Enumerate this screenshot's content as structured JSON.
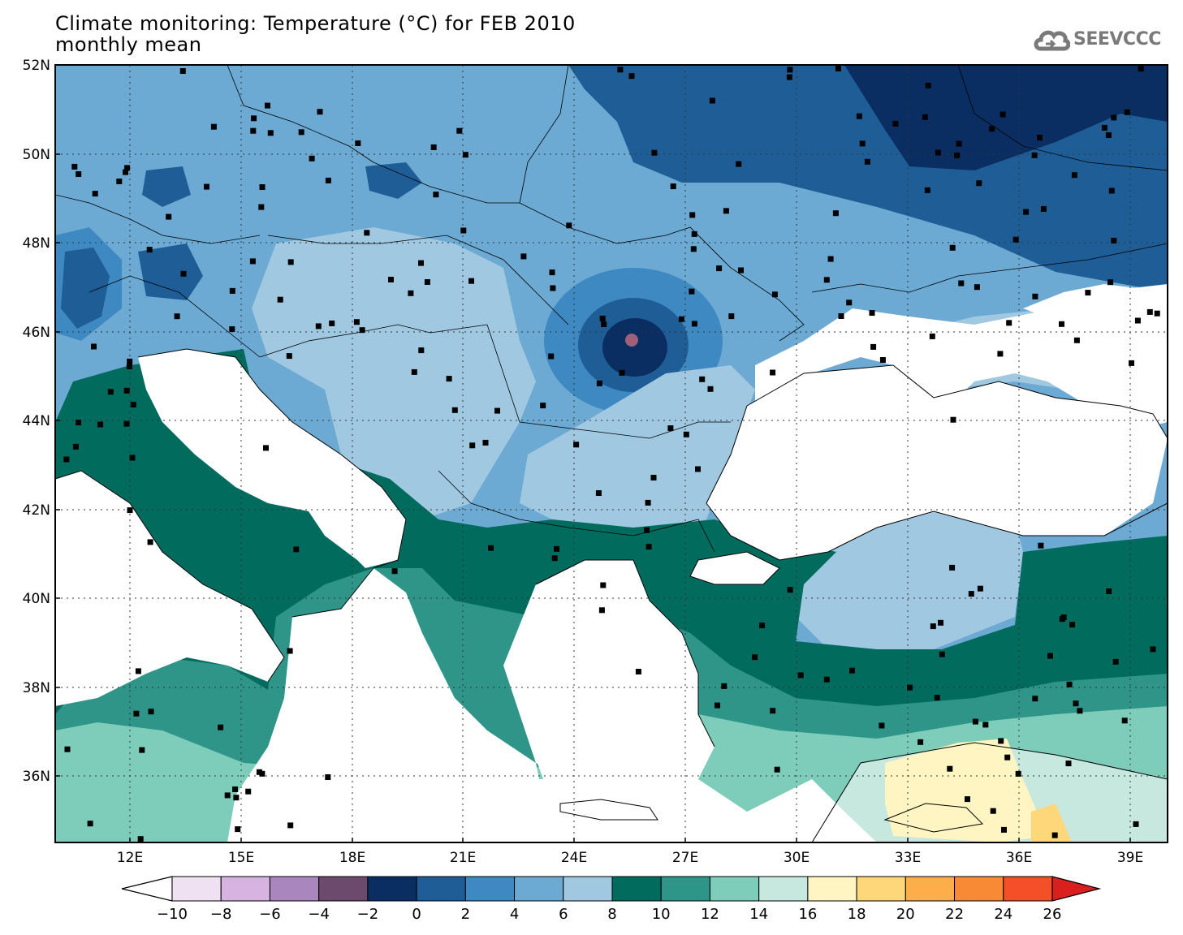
{
  "title": {
    "line1": "Climate monitoring: Temperature (°C) for FEB 2010",
    "line2": "monthly mean"
  },
  "logo": {
    "text": "SEEVCCC",
    "icon": "cloud-icon"
  },
  "map": {
    "lon_range": [
      10.2,
      40
    ],
    "lat_range": [
      34.5,
      52
    ],
    "lat_ticks": [
      "52N",
      "50N",
      "48N",
      "46N",
      "44N",
      "42N",
      "40N",
      "38N",
      "36N"
    ],
    "lon_ticks": [
      "12E",
      "15E",
      "18E",
      "21E",
      "24E",
      "27E",
      "30E",
      "33E",
      "36E",
      "39E"
    ],
    "grid": "dotted",
    "station_markers": "black squares",
    "highlight_marker_color": "#a0607a"
  },
  "colorbar": {
    "levels": [
      "-10",
      "-8",
      "-6",
      "-4",
      "-2",
      "0",
      "2",
      "4",
      "6",
      "8",
      "10",
      "12",
      "14",
      "16",
      "18",
      "20",
      "22",
      "24",
      "26"
    ],
    "colors": [
      "#ffffff",
      "#efe0f2",
      "#d7b3e0",
      "#a987be",
      "#6b4a6e",
      "#0b2e62",
      "#1f5d96",
      "#3f89c2",
      "#6caad4",
      "#a0c8e0",
      "#016b5e",
      "#2e9588",
      "#7ecdbb",
      "#c6e8df",
      "#fff5c2",
      "#fdd77a",
      "#fdae4b",
      "#f98a35",
      "#f45027",
      "#d9201e"
    ]
  }
}
